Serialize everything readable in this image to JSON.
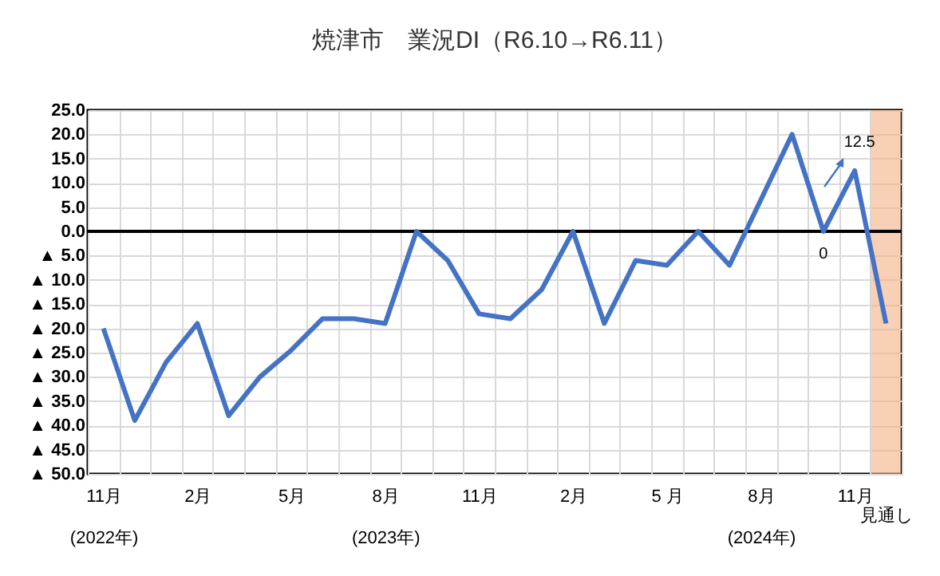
{
  "chart_data": {
    "type": "line",
    "title": "焼津市　業況DI（R6.10→R6.11）",
    "categories": [
      "11月\n(2022年)",
      null,
      null,
      "2月",
      null,
      null,
      "5月",
      null,
      null,
      "8月\n(2023年)",
      null,
      null,
      "11月",
      null,
      null,
      "2月",
      null,
      null,
      "5 月",
      null,
      null,
      "8月\n(2024年)",
      null,
      null,
      "11月",
      "見通し"
    ],
    "series": [
      {
        "color": "#4472c4",
        "values": [
          -20,
          -39,
          -27,
          -19,
          -38,
          -30,
          -24.5,
          -18,
          -18,
          -19,
          0,
          -6,
          -17,
          -18,
          -12,
          0,
          -19,
          -6,
          -7,
          0,
          -7,
          6.5,
          20,
          0,
          12.5,
          -19
        ],
        "value_labels": [
          null,
          null,
          null,
          null,
          null,
          null,
          null,
          null,
          null,
          null,
          null,
          null,
          null,
          null,
          null,
          null,
          null,
          null,
          null,
          null,
          null,
          null,
          null,
          "0",
          "12.5",
          null
        ]
      }
    ],
    "ylim": [
      -50,
      25
    ],
    "yticks": [
      {
        "value": 25,
        "label": "25.0"
      },
      {
        "value": 20,
        "label": "20.0"
      },
      {
        "value": 15,
        "label": "15.0"
      },
      {
        "value": 10,
        "label": "10.0"
      },
      {
        "value": 5,
        "label": "5.0"
      },
      {
        "value": 0,
        "label": "0.0"
      },
      {
        "value": -5,
        "label": "▲ 5.0"
      },
      {
        "value": -10,
        "label": "▲ 10.0"
      },
      {
        "value": -15,
        "label": "▲ 15.0"
      },
      {
        "value": -20,
        "label": "▲ 20.0"
      },
      {
        "value": -25,
        "label": "▲ 25.0"
      },
      {
        "value": -30,
        "label": "▲ 30.0"
      },
      {
        "value": -35,
        "label": "▲ 35.0"
      },
      {
        "value": -40,
        "label": "▲ 40.0"
      },
      {
        "value": -45,
        "label": "▲ 45.0"
      },
      {
        "value": -50,
        "label": "▲ 50.0"
      }
    ],
    "ref_lines": [
      {
        "axis": "y",
        "value": 0,
        "color": "#000000"
      }
    ],
    "bands": [
      {
        "axis": "x",
        "from": "見通し",
        "to": "見通し",
        "color": "#f4b183"
      }
    ],
    "grid": true,
    "legend": false,
    "marker": "none",
    "line_style": "solid"
  }
}
